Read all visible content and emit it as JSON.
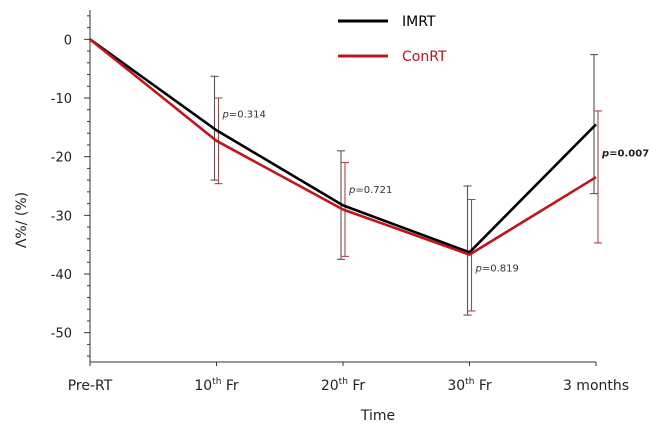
{
  "chart_data": {
    "type": "line",
    "title": "",
    "xlabel": "Time",
    "ylabel": "Λ%/ (%)",
    "ylim": [
      -55,
      5
    ],
    "yticks": [
      0,
      -10,
      -20,
      -30,
      -40,
      -50
    ],
    "categories": [
      {
        "base": "Pre-RT",
        "sup": "",
        "rest": ""
      },
      {
        "base": "10",
        "sup": "th",
        "rest": " Fr"
      },
      {
        "base": "20",
        "sup": "th",
        "rest": " Fr"
      },
      {
        "base": "30",
        "sup": "th",
        "rest": " Fr"
      },
      {
        "base": "3 months",
        "sup": "",
        "rest": ""
      }
    ],
    "series": [
      {
        "name": "IMRT",
        "color": "#000000",
        "values": [
          0,
          -15.5,
          -28.3,
          -36.3,
          -14.5
        ],
        "err_low": [
          null,
          -24.0,
          -37.5,
          -47.0,
          -26.3
        ],
        "err_high": [
          null,
          -6.3,
          -19.0,
          -25.0,
          -2.6
        ]
      },
      {
        "name": "ConRT",
        "color": "#c0151b",
        "values": [
          0,
          -17.3,
          -29.0,
          -36.7,
          -23.5
        ],
        "err_low": [
          null,
          -24.6,
          -37.0,
          -46.3,
          -34.7
        ],
        "err_high": [
          null,
          -10.0,
          -21.0,
          -27.3,
          -12.2
        ]
      }
    ],
    "legend_position": "top-center",
    "annotations": [
      {
        "prefix": "p",
        "text": "=0.314",
        "x_index": 1,
        "y": -13.3,
        "bold": false
      },
      {
        "prefix": "p",
        "text": "=0.721",
        "x_index": 2,
        "y": -26.2,
        "bold": false
      },
      {
        "prefix": "p",
        "text": "=0.819",
        "x_index": 3,
        "y": -39.6,
        "bold": false
      },
      {
        "prefix": "p",
        "text": "=0.007",
        "x_index": 4,
        "y": -20.0,
        "bold": true
      }
    ]
  }
}
